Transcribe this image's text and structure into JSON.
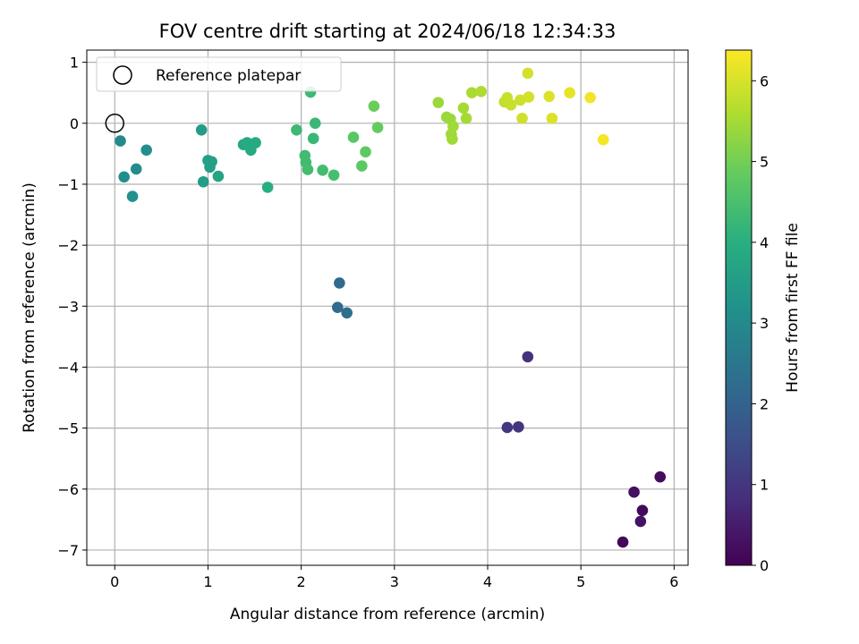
{
  "chart_data": {
    "type": "scatter",
    "title": "FOV centre drift starting at 2024/06/18 12:34:33",
    "xlabel": "Angular distance from reference (arcmin)",
    "ylabel": "Rotation from reference (arcmin)",
    "xlim": [
      -0.3,
      6.15
    ],
    "ylim": [
      -7.25,
      1.2
    ],
    "xticks": [
      0,
      1,
      2,
      3,
      4,
      5,
      6
    ],
    "yticks": [
      1,
      0,
      -1,
      -2,
      -3,
      -4,
      -5,
      -6,
      -7
    ],
    "grid": true,
    "colormap": "viridis",
    "colorbar": {
      "label": "Hours from first FF file",
      "range": [
        0,
        6.38
      ],
      "ticks": [
        0,
        1,
        2,
        3,
        4,
        5,
        6
      ]
    },
    "legend": {
      "placement": "top-left",
      "entries": [
        {
          "label": "Reference platepar",
          "marker": "open-circle"
        }
      ]
    },
    "reference_point": {
      "x": 0,
      "y": 0
    },
    "series": [
      {
        "points": [
          {
            "x": 5.45,
            "y": -6.87,
            "c": 0.1
          },
          {
            "x": 5.85,
            "y": -5.8,
            "c": 0.2
          },
          {
            "x": 5.57,
            "y": -6.05,
            "c": 0.25
          },
          {
            "x": 5.66,
            "y": -6.35,
            "c": 0.15
          },
          {
            "x": 5.64,
            "y": -6.53,
            "c": 0.3
          },
          {
            "x": 4.43,
            "y": -3.83,
            "c": 0.9
          },
          {
            "x": 4.33,
            "y": -4.98,
            "c": 0.95
          },
          {
            "x": 4.21,
            "y": -4.99,
            "c": 1.0
          },
          {
            "x": 2.41,
            "y": -2.62,
            "c": 2.2
          },
          {
            "x": 2.39,
            "y": -3.02,
            "c": 2.25
          },
          {
            "x": 2.49,
            "y": -3.11,
            "c": 2.3
          },
          {
            "x": 0.06,
            "y": -0.29,
            "c": 3.0
          },
          {
            "x": 0.1,
            "y": -0.88,
            "c": 3.1
          },
          {
            "x": 0.23,
            "y": -0.75,
            "c": 3.05
          },
          {
            "x": 0.19,
            "y": -1.2,
            "c": 3.2
          },
          {
            "x": 0.34,
            "y": -0.44,
            "c": 3.15
          },
          {
            "x": 0.93,
            "y": -0.11,
            "c": 3.5
          },
          {
            "x": 0.95,
            "y": -0.96,
            "c": 3.5
          },
          {
            "x": 1.0,
            "y": -0.61,
            "c": 3.6
          },
          {
            "x": 1.04,
            "y": -0.63,
            "c": 3.6
          },
          {
            "x": 1.02,
            "y": -0.72,
            "c": 3.6
          },
          {
            "x": 1.11,
            "y": -0.87,
            "c": 3.7
          },
          {
            "x": 1.38,
            "y": -0.35,
            "c": 3.8
          },
          {
            "x": 1.42,
            "y": -0.32,
            "c": 3.85
          },
          {
            "x": 1.46,
            "y": -0.44,
            "c": 3.85
          },
          {
            "x": 1.51,
            "y": -0.32,
            "c": 3.9
          },
          {
            "x": 1.64,
            "y": -1.05,
            "c": 4.0
          },
          {
            "x": 2.1,
            "y": 0.51,
            "c": 4.3
          },
          {
            "x": 2.15,
            "y": 0.0,
            "c": 4.25
          },
          {
            "x": 2.13,
            "y": -0.25,
            "c": 4.25
          },
          {
            "x": 1.95,
            "y": -0.11,
            "c": 4.3
          },
          {
            "x": 2.04,
            "y": -0.53,
            "c": 4.35
          },
          {
            "x": 2.05,
            "y": -0.64,
            "c": 4.35
          },
          {
            "x": 2.07,
            "y": -0.76,
            "c": 4.4
          },
          {
            "x": 2.23,
            "y": -0.77,
            "c": 4.4
          },
          {
            "x": 2.35,
            "y": -0.85,
            "c": 4.45
          },
          {
            "x": 2.56,
            "y": -0.23,
            "c": 4.7
          },
          {
            "x": 2.65,
            "y": -0.7,
            "c": 4.75
          },
          {
            "x": 2.69,
            "y": -0.47,
            "c": 4.8
          },
          {
            "x": 2.78,
            "y": 0.28,
            "c": 4.9
          },
          {
            "x": 2.82,
            "y": -0.07,
            "c": 4.85
          },
          {
            "x": 3.47,
            "y": 0.34,
            "c": 5.4
          },
          {
            "x": 3.56,
            "y": 0.1,
            "c": 5.4
          },
          {
            "x": 3.6,
            "y": 0.07,
            "c": 5.4
          },
          {
            "x": 3.63,
            "y": -0.05,
            "c": 5.45
          },
          {
            "x": 3.61,
            "y": -0.18,
            "c": 5.45
          },
          {
            "x": 3.62,
            "y": -0.26,
            "c": 5.45
          },
          {
            "x": 3.74,
            "y": 0.25,
            "c": 5.5
          },
          {
            "x": 3.77,
            "y": 0.08,
            "c": 5.5
          },
          {
            "x": 3.83,
            "y": 0.5,
            "c": 5.55
          },
          {
            "x": 3.93,
            "y": 0.52,
            "c": 5.6
          },
          {
            "x": 4.18,
            "y": 0.35,
            "c": 5.8
          },
          {
            "x": 4.21,
            "y": 0.42,
            "c": 5.85
          },
          {
            "x": 4.25,
            "y": 0.3,
            "c": 5.85
          },
          {
            "x": 4.35,
            "y": 0.38,
            "c": 5.9
          },
          {
            "x": 4.37,
            "y": 0.08,
            "c": 5.9
          },
          {
            "x": 4.44,
            "y": 0.43,
            "c": 5.95
          },
          {
            "x": 4.43,
            "y": 0.82,
            "c": 5.95
          },
          {
            "x": 4.66,
            "y": 0.44,
            "c": 6.05
          },
          {
            "x": 4.69,
            "y": 0.08,
            "c": 6.05
          },
          {
            "x": 4.88,
            "y": 0.5,
            "c": 6.15
          },
          {
            "x": 5.1,
            "y": 0.42,
            "c": 6.25
          },
          {
            "x": 5.24,
            "y": -0.27,
            "c": 6.3
          }
        ]
      }
    ]
  }
}
